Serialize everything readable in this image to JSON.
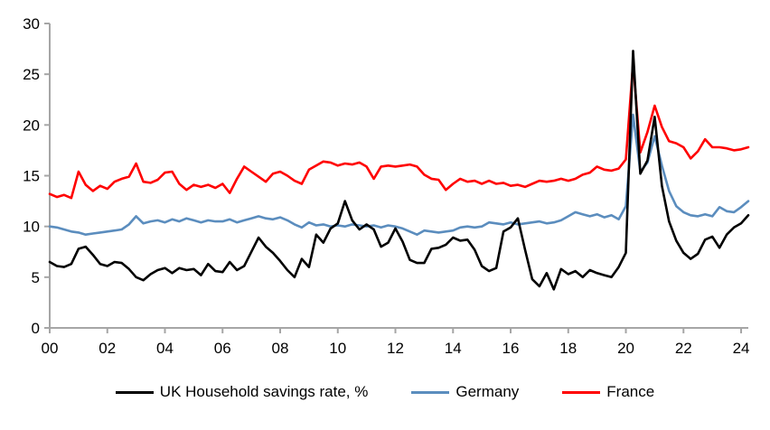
{
  "chart_data": {
    "type": "line",
    "title": "",
    "xlabel": "",
    "ylabel": "",
    "x_start_year": 2000,
    "x_step_years": 0.25,
    "x_end_year": 2024.25,
    "x_tick_labels": [
      "00",
      "02",
      "04",
      "06",
      "08",
      "10",
      "12",
      "14",
      "16",
      "18",
      "20",
      "22",
      "24"
    ],
    "y_ticks": [
      0,
      5,
      10,
      15,
      20,
      25,
      30
    ],
    "ylim": [
      0,
      30
    ],
    "grid": false,
    "legend_position": "bottom",
    "axis_color": "#A6A6A6",
    "frequency": "quarterly",
    "series": [
      {
        "name": "UK Household savings rate, %",
        "color": "#000000",
        "values": [
          6.5,
          6.1,
          6.0,
          6.3,
          7.8,
          8.0,
          7.2,
          6.3,
          6.1,
          6.5,
          6.4,
          5.8,
          5.0,
          4.7,
          5.3,
          5.7,
          5.9,
          5.4,
          5.9,
          5.7,
          5.8,
          5.2,
          6.3,
          5.6,
          5.5,
          6.5,
          5.7,
          6.1,
          7.5,
          8.9,
          8.0,
          7.4,
          6.6,
          5.7,
          5.0,
          6.8,
          6.0,
          9.2,
          8.4,
          9.8,
          10.3,
          12.5,
          10.6,
          9.7,
          10.2,
          9.7,
          8.0,
          8.4,
          9.8,
          8.5,
          6.7,
          6.4,
          6.4,
          7.8,
          7.9,
          8.2,
          8.9,
          8.6,
          8.7,
          7.7,
          6.1,
          5.6,
          5.9,
          9.5,
          9.9,
          10.8,
          7.7,
          4.8,
          4.1,
          5.4,
          3.8,
          5.8,
          5.3,
          5.6,
          5.0,
          5.7,
          5.4,
          5.2,
          5.0,
          6.0,
          7.4,
          27.3,
          15.2,
          16.5,
          20.8,
          14.0,
          10.5,
          8.6,
          7.4,
          6.8,
          7.3,
          8.7,
          9.0,
          7.9,
          9.2,
          9.9,
          10.3,
          11.1
        ]
      },
      {
        "name": "Germany",
        "color": "#5B8DBE",
        "values": [
          10.0,
          9.9,
          9.7,
          9.5,
          9.4,
          9.2,
          9.3,
          9.4,
          9.5,
          9.6,
          9.7,
          10.2,
          11.0,
          10.3,
          10.5,
          10.6,
          10.4,
          10.7,
          10.5,
          10.8,
          10.6,
          10.4,
          10.6,
          10.5,
          10.5,
          10.7,
          10.4,
          10.6,
          10.8,
          11.0,
          10.8,
          10.7,
          10.9,
          10.6,
          10.2,
          9.9,
          10.4,
          10.1,
          10.2,
          10.0,
          10.1,
          10.0,
          10.2,
          10.1,
          10.0,
          10.1,
          9.9,
          10.1,
          10.0,
          9.8,
          9.5,
          9.2,
          9.6,
          9.5,
          9.4,
          9.5,
          9.6,
          9.9,
          10.0,
          9.9,
          10.0,
          10.4,
          10.3,
          10.2,
          10.4,
          10.2,
          10.3,
          10.4,
          10.5,
          10.3,
          10.4,
          10.6,
          11.0,
          11.4,
          11.2,
          11.0,
          11.2,
          10.9,
          11.1,
          10.7,
          12.0,
          21.0,
          15.4,
          16.3,
          18.9,
          16.0,
          13.5,
          12.0,
          11.4,
          11.1,
          11.0,
          11.2,
          11.0,
          11.9,
          11.5,
          11.4,
          11.9,
          12.5
        ]
      },
      {
        "name": "France",
        "color": "#FF0000",
        "values": [
          13.2,
          12.9,
          13.1,
          12.8,
          15.4,
          14.1,
          13.5,
          14.0,
          13.7,
          14.4,
          14.7,
          14.9,
          16.2,
          14.4,
          14.3,
          14.6,
          15.3,
          15.4,
          14.2,
          13.6,
          14.1,
          13.9,
          14.1,
          13.8,
          14.2,
          13.3,
          14.7,
          15.9,
          15.4,
          14.9,
          14.4,
          15.2,
          15.4,
          15.0,
          14.5,
          14.2,
          15.6,
          16.0,
          16.4,
          16.3,
          16.0,
          16.2,
          16.1,
          16.3,
          15.9,
          14.7,
          15.9,
          16.0,
          15.9,
          16.0,
          16.1,
          15.9,
          15.1,
          14.7,
          14.6,
          13.6,
          14.2,
          14.7,
          14.4,
          14.5,
          14.2,
          14.5,
          14.2,
          14.3,
          14.0,
          14.1,
          13.9,
          14.2,
          14.5,
          14.4,
          14.5,
          14.7,
          14.5,
          14.7,
          15.1,
          15.3,
          15.9,
          15.6,
          15.5,
          15.7,
          16.6,
          26.1,
          17.3,
          19.3,
          21.9,
          19.8,
          18.4,
          18.2,
          17.8,
          16.7,
          17.4,
          18.6,
          17.8,
          17.8,
          17.7,
          17.5,
          17.6,
          17.8
        ]
      }
    ],
    "draw_order": [
      1,
      2,
      0
    ]
  }
}
